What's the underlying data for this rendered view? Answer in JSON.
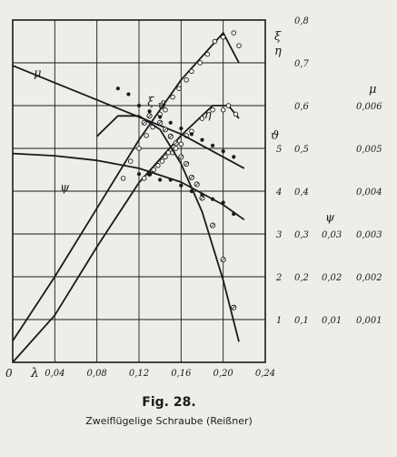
{
  "chart_data": {
    "type": "scatter",
    "xlabel": "λ",
    "origin_label": "0",
    "x_ticks": [
      "0,04",
      "0,08",
      "0,12",
      "0,16",
      "0,20",
      "0,24"
    ],
    "xlim": [
      0,
      0.24
    ],
    "right_axes": [
      {
        "symbol": "ξ",
        "ticks": [
          "0,1",
          "0,2",
          "0,3",
          "0,4",
          "0,5",
          "0,6",
          "0,7",
          "0,8"
        ],
        "range": [
          0,
          0.8
        ]
      },
      {
        "symbol": "η",
        "ticks": [
          "0,1",
          "0,2",
          "0,3",
          "0,4",
          "0,5",
          "0,6",
          "0,7",
          "0,8"
        ],
        "range": [
          0,
          0.8
        ]
      },
      {
        "symbol": "ϑ",
        "ticks": [
          "1",
          "2",
          "3",
          "4",
          "5"
        ],
        "range": [
          0,
          5
        ]
      },
      {
        "symbol": "ψ",
        "ticks": [
          "0,01",
          "0,02",
          "0,03"
        ],
        "range": [
          0,
          0.03
        ]
      },
      {
        "symbol": "μ",
        "ticks": [
          "0,001",
          "0,002",
          "0,003",
          "0,004",
          "0,005",
          "0,006"
        ],
        "range": [
          0,
          0.006
        ]
      }
    ],
    "series": [
      {
        "name": "ξ",
        "axis": "ξ",
        "curve_x": [
          0.0,
          0.04,
          0.08,
          0.12,
          0.16,
          0.2,
          0.215
        ],
        "curve_y": [
          0.05,
          0.2,
          0.36,
          0.52,
          0.66,
          0.77,
          0.7
        ],
        "points_x": [
          0.105,
          0.112,
          0.12,
          0.127,
          0.133,
          0.14,
          0.145,
          0.152,
          0.158,
          0.165,
          0.17,
          0.178,
          0.185,
          0.192,
          0.2,
          0.21,
          0.215
        ],
        "points_y": [
          0.43,
          0.47,
          0.5,
          0.53,
          0.55,
          0.58,
          0.59,
          0.62,
          0.64,
          0.66,
          0.68,
          0.7,
          0.72,
          0.75,
          0.76,
          0.77,
          0.74
        ]
      },
      {
        "name": "η",
        "axis": "η",
        "curve_x": [
          0.0,
          0.04,
          0.08,
          0.12,
          0.16,
          0.19,
          0.205,
          0.215
        ],
        "curve_y": [
          0.0,
          0.11,
          0.27,
          0.42,
          0.53,
          0.6,
          0.6,
          0.57
        ],
        "points_x": [
          0.125,
          0.13,
          0.134,
          0.138,
          0.142,
          0.145,
          0.148,
          0.152,
          0.155,
          0.16,
          0.165,
          0.17,
          0.18,
          0.19,
          0.2,
          0.205,
          0.212
        ],
        "points_y": [
          0.43,
          0.44,
          0.45,
          0.46,
          0.47,
          0.48,
          0.49,
          0.49,
          0.5,
          0.51,
          0.53,
          0.54,
          0.57,
          0.59,
          0.59,
          0.6,
          0.58
        ]
      },
      {
        "name": "μ",
        "axis": "μ",
        "curve_x": [
          0.0,
          0.04,
          0.08,
          0.12,
          0.16,
          0.2,
          0.22
        ],
        "curve_y": [
          0.0052,
          0.0049,
          0.0046,
          0.0043,
          0.004,
          0.0036,
          0.0034
        ],
        "points_x": [
          0.1,
          0.11,
          0.12,
          0.13,
          0.14,
          0.15,
          0.16,
          0.17,
          0.18,
          0.19,
          0.2,
          0.21
        ],
        "points_y": [
          0.0048,
          0.0047,
          0.0045,
          0.0044,
          0.0043,
          0.0042,
          0.0041,
          0.004,
          0.0039,
          0.0038,
          0.0037,
          0.0036
        ]
      },
      {
        "name": "ϑ",
        "axis": "ϑ",
        "curve_x": [
          0.08,
          0.1,
          0.12,
          0.14,
          0.16,
          0.18,
          0.2,
          0.215
        ],
        "curve_y": [
          3.3,
          3.6,
          3.6,
          3.4,
          2.9,
          2.2,
          1.2,
          0.3
        ],
        "points_x": [
          0.125,
          0.13,
          0.14,
          0.145,
          0.15,
          0.155,
          0.16,
          0.165,
          0.17,
          0.175,
          0.18,
          0.19,
          0.2,
          0.21
        ],
        "points_y": [
          3.5,
          3.6,
          3.5,
          3.4,
          3.3,
          3.2,
          3.0,
          2.9,
          2.7,
          2.6,
          2.4,
          2.0,
          1.5,
          0.8
        ]
      },
      {
        "name": "ψ",
        "axis": "ψ",
        "curve_x": [
          0.0,
          0.04,
          0.08,
          0.12,
          0.16,
          0.2,
          0.22
        ],
        "curve_y": [
          0.0183,
          0.0181,
          0.0177,
          0.017,
          0.0158,
          0.0138,
          0.0125
        ],
        "points_x": [
          0.12,
          0.13,
          0.14,
          0.15,
          0.16,
          0.17,
          0.18,
          0.19,
          0.2,
          0.21
        ],
        "points_y": [
          0.0165,
          0.0165,
          0.016,
          0.016,
          0.0155,
          0.015,
          0.0147,
          0.0143,
          0.014,
          0.013
        ]
      }
    ],
    "grid": true,
    "grid_lines_x": 6,
    "grid_lines_y": 8
  },
  "caption": {
    "title": "Fig. 28.",
    "subtitle": "Zweiflügelige Schraube (Reißner)"
  },
  "colors": {
    "ink": "#1a1a1a",
    "paper": "#efede8"
  }
}
